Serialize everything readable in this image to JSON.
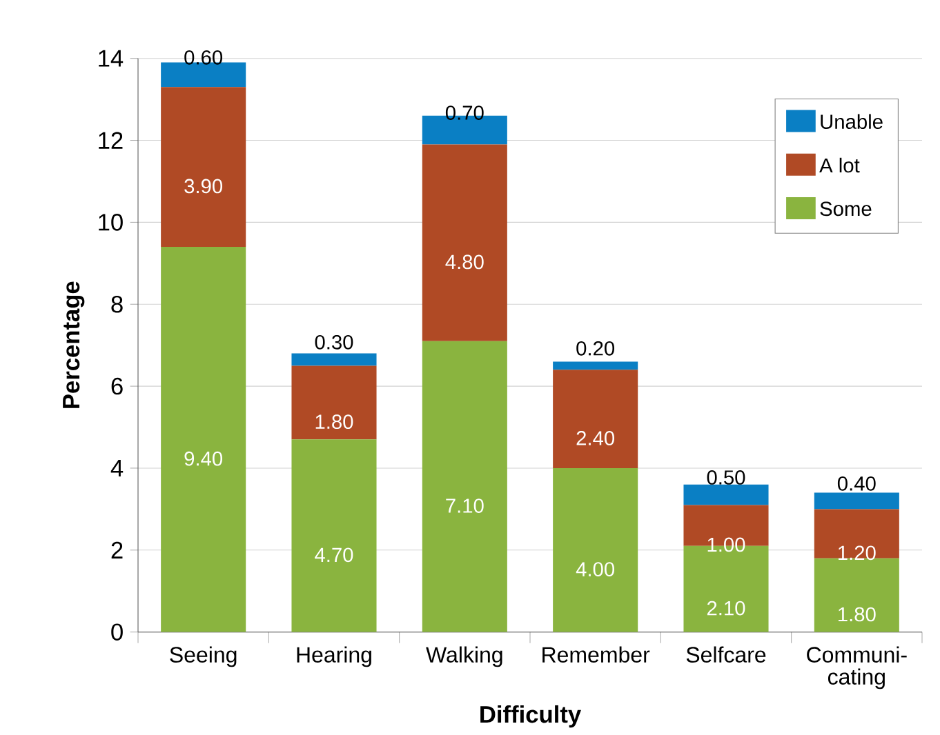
{
  "chart_data": {
    "type": "bar",
    "stacked": true,
    "xlabel": "Difficulty",
    "ylabel": "Percentage",
    "categories": [
      "Seeing",
      "Hearing",
      "Walking",
      "Remember",
      "Selfcare",
      "Communi-cating"
    ],
    "series": [
      {
        "name": "Some",
        "color": "#8ab43f",
        "values": [
          9.4,
          4.7,
          7.1,
          4.0,
          2.1,
          1.8
        ],
        "value_labels": [
          "9.40",
          "4.70",
          "7.10",
          "4.00",
          "2.10",
          "1.80"
        ]
      },
      {
        "name": "A lot",
        "color": "#b04a25",
        "values": [
          3.9,
          1.8,
          4.8,
          2.4,
          1.0,
          1.2
        ],
        "value_labels": [
          "3.90",
          "1.80",
          "4.80",
          "2.40",
          "1.00",
          "1.20"
        ]
      },
      {
        "name": "Unable",
        "color": "#0a7fc4",
        "values": [
          0.6,
          0.3,
          0.7,
          0.2,
          0.5,
          0.4
        ],
        "value_labels": [
          "0.60",
          "0.30",
          "0.70",
          "0.20",
          "0.50",
          "0.40"
        ]
      }
    ],
    "ylim": [
      0,
      14
    ],
    "yticks": [
      0,
      2,
      4,
      6,
      8,
      10,
      12,
      14
    ],
    "grid": "y",
    "legend": "top right"
  }
}
